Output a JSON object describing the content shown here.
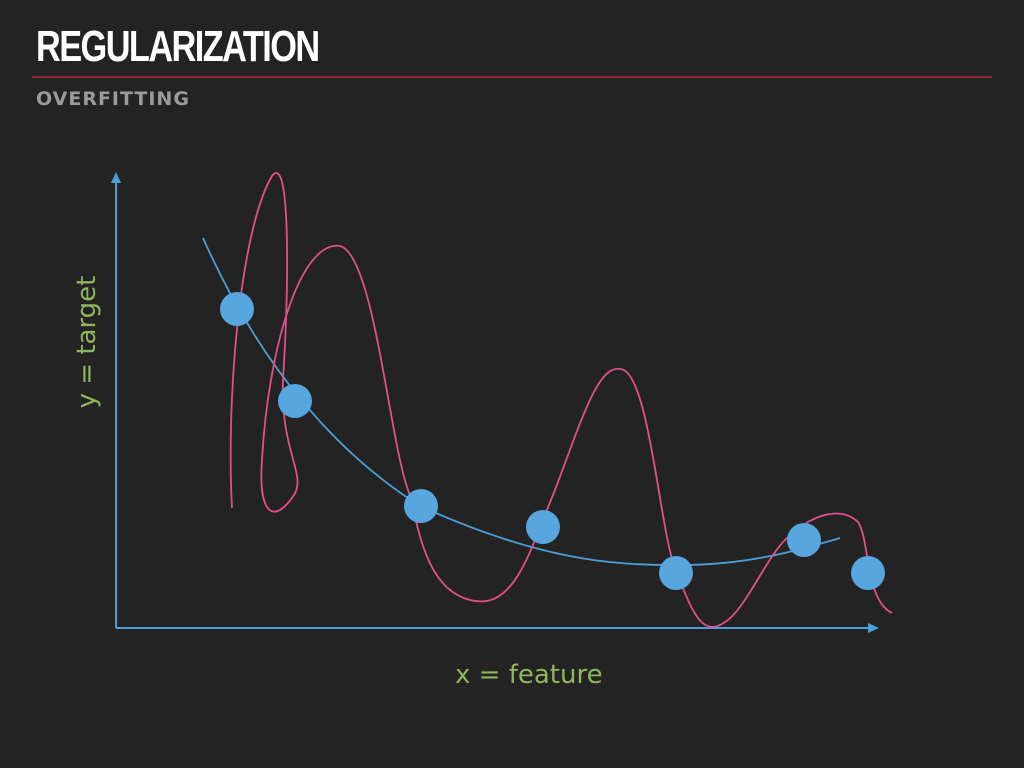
{
  "slide": {
    "title": "REGULARIZATION",
    "subtitle": "OVERFITTING"
  },
  "diagram": {
    "x_axis_label": "x = feature",
    "y_axis_label": "y = target",
    "colors": {
      "background": "#232323",
      "axis": "#4a9fd8",
      "points": "#58a6e0",
      "smooth_fit": "#4a9fd8",
      "overfit_curve": "#e0508a",
      "labels": "#8fb75a",
      "rule": "#8c2a2a"
    }
  }
}
